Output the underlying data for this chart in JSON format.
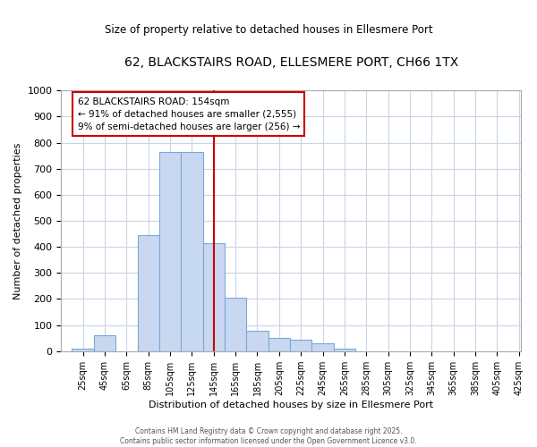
{
  "title": "62, BLACKSTAIRS ROAD, ELLESMERE PORT, CH66 1TX",
  "subtitle": "Size of property relative to detached houses in Ellesmere Port",
  "xlabel": "Distribution of detached houses by size in Ellesmere Port",
  "ylabel": "Number of detached properties",
  "bins": [
    25,
    45,
    65,
    85,
    105,
    125,
    145,
    165,
    185,
    205,
    225,
    245,
    265,
    285,
    305,
    325,
    345,
    365,
    385,
    405,
    425
  ],
  "counts": [
    8,
    62,
    0,
    445,
    763,
    763,
    415,
    204,
    78,
    50,
    45,
    30,
    10,
    0,
    0,
    0,
    0,
    0,
    0,
    0
  ],
  "bar_color": "#c8d8f0",
  "bar_edgecolor": "#7aa8d8",
  "grid_color": "#c8d4e8",
  "ref_line_x": 155,
  "ref_line_color": "#cc0000",
  "annotation_text": "62 BLACKSTAIRS ROAD: 154sqm\n← 91% of detached houses are smaller (2,555)\n9% of semi-detached houses are larger (256) →",
  "annotation_box_color": "white",
  "annotation_box_edgecolor": "#cc0000",
  "ylim": [
    0,
    1000
  ],
  "yticks": [
    0,
    100,
    200,
    300,
    400,
    500,
    600,
    700,
    800,
    900,
    1000
  ],
  "footer_text": "Contains HM Land Registry data © Crown copyright and database right 2025.\nContains public sector information licensed under the Open Government Licence v3.0.",
  "bg_color": "#ffffff"
}
